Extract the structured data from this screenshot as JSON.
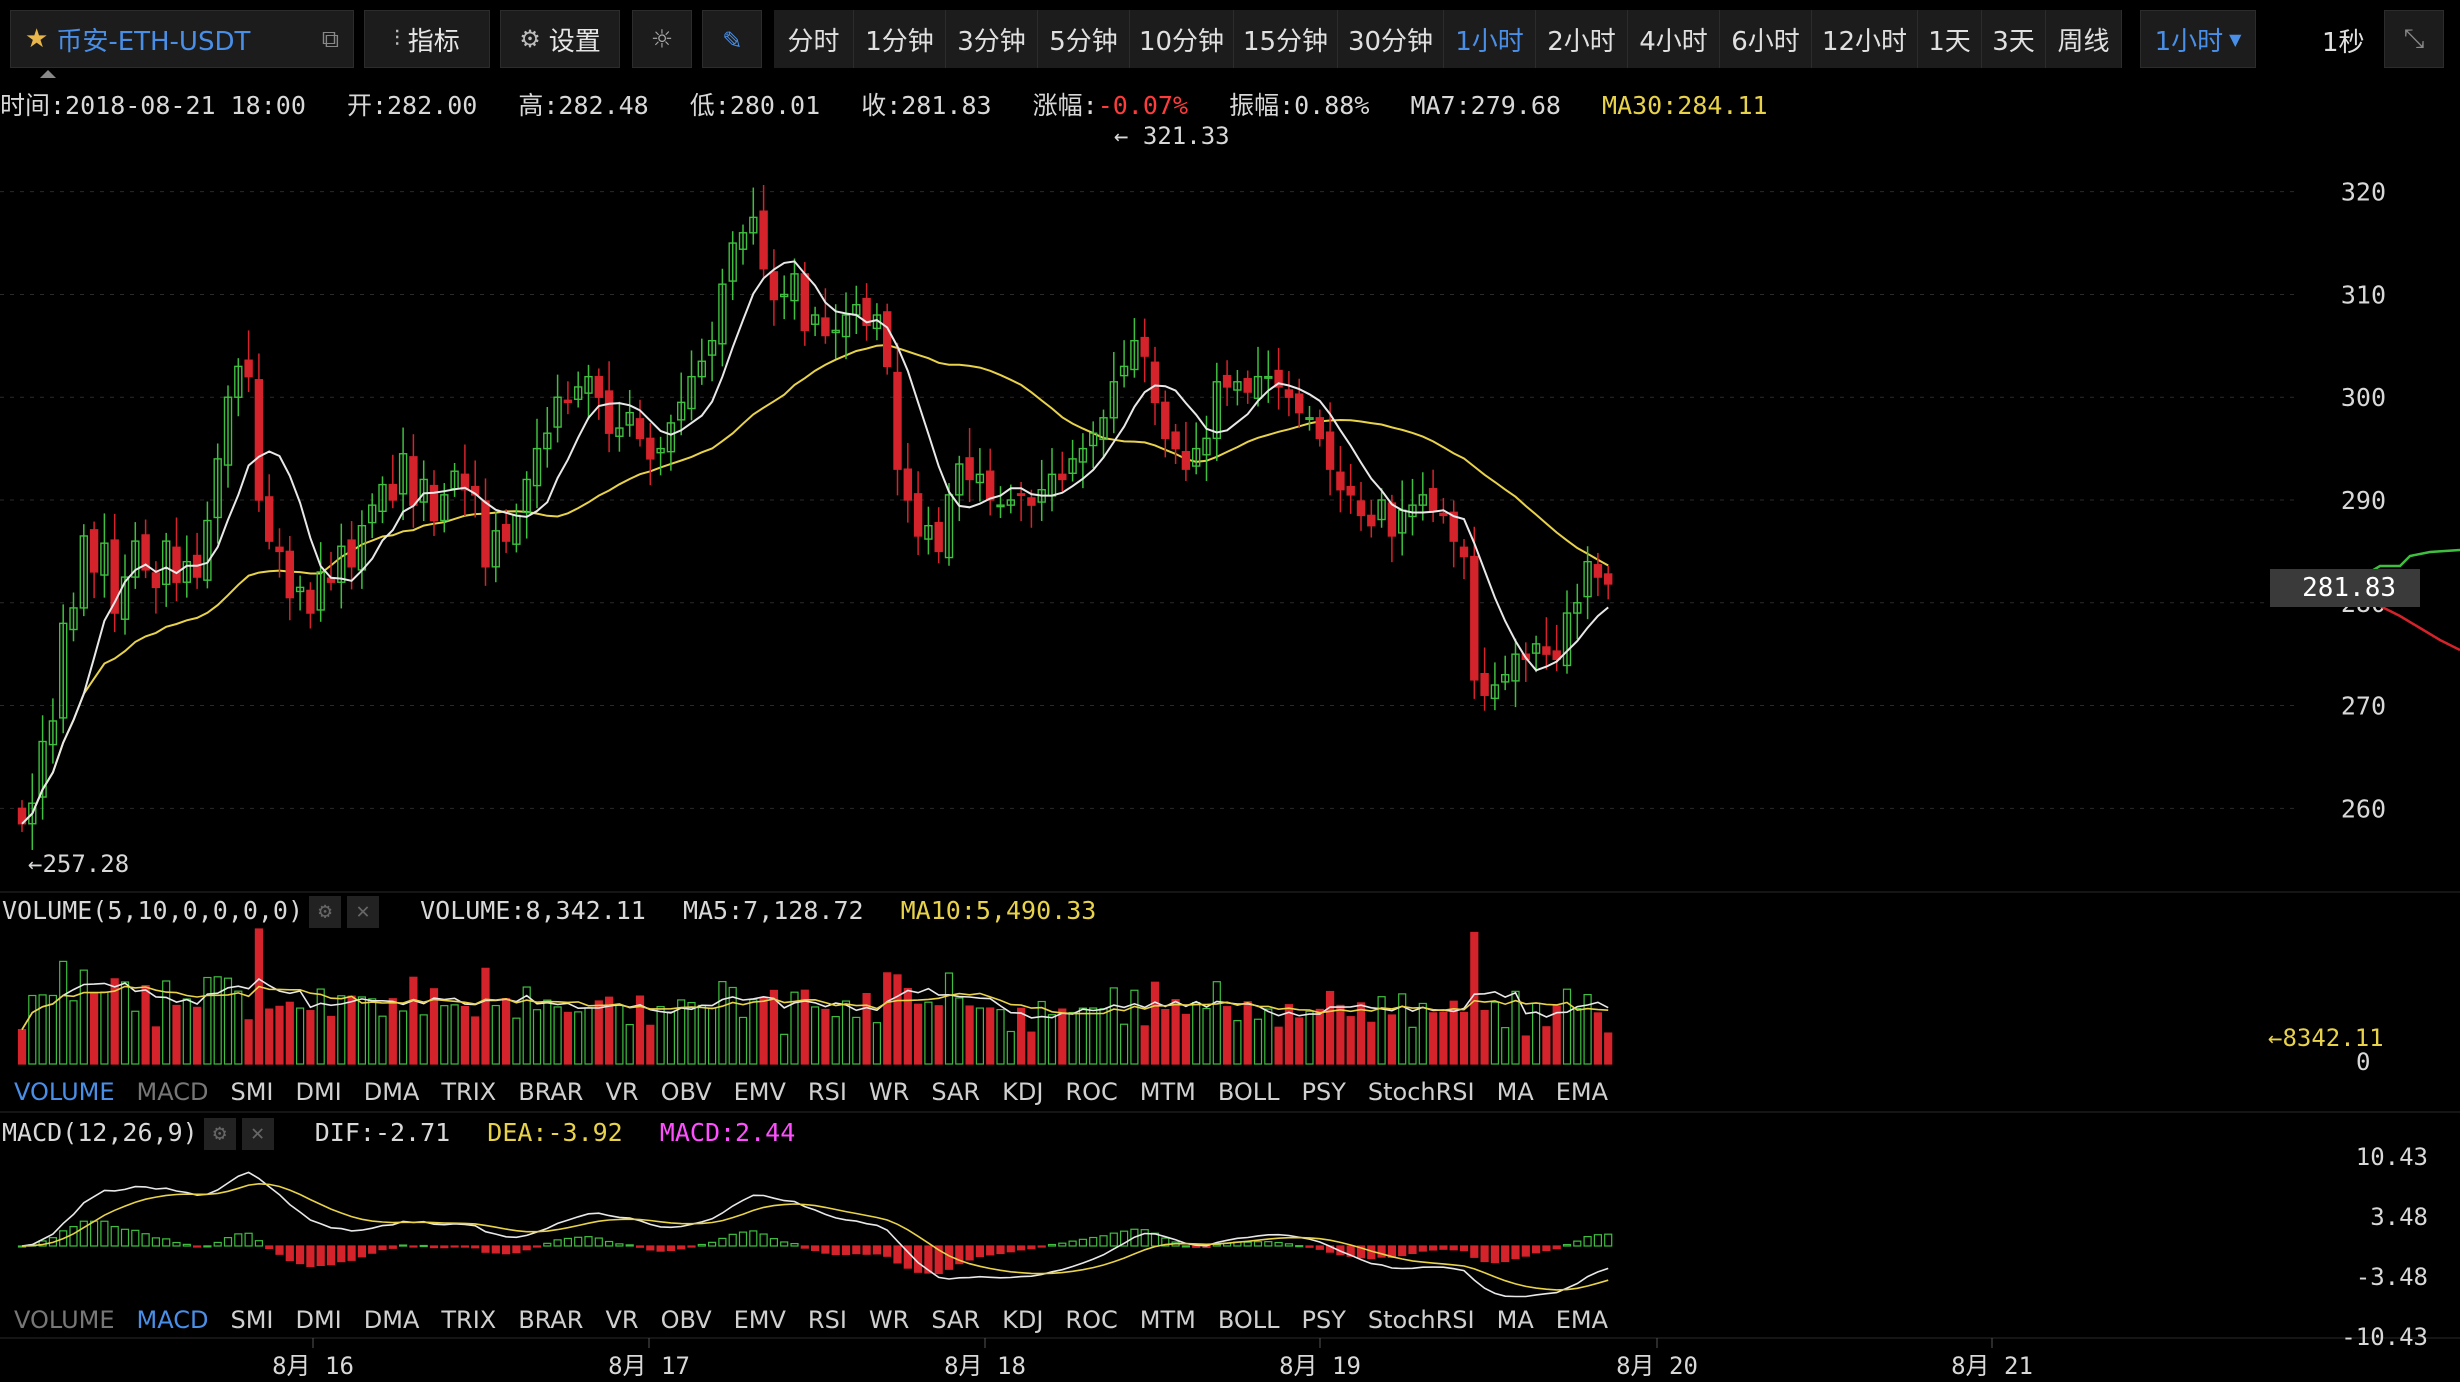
{
  "toolbar": {
    "symbol": "币安-ETH-USDT",
    "indicators_label": "指标",
    "settings_label": "设置",
    "timeframes": [
      "分时",
      "1分钟",
      "3分钟",
      "5分钟",
      "10分钟",
      "15分钟",
      "30分钟",
      "1小时",
      "2小时",
      "4小时",
      "6小时",
      "12小时",
      "1天",
      "3天",
      "周线"
    ],
    "active_timeframe": "1小时",
    "timeframe_select": "1小时",
    "refresh": "1秒"
  },
  "info": {
    "time": "时间:2018-08-21 18:00",
    "open": "开:282.00",
    "high": "高:282.48",
    "low": "低:280.01",
    "close": "收:281.83",
    "change_label": "涨幅:",
    "change_value": "-0.07%",
    "amplitude": "振幅:0.88%",
    "ma7": "MA7:279.68",
    "ma30": "MA30:284.11"
  },
  "price_pane": {
    "max_label": "← 321.33",
    "min_label": "←257.28",
    "last_price": "281.83",
    "axis_ticks": [
      "320",
      "310",
      "300",
      "290",
      "280",
      "270",
      "260"
    ]
  },
  "volume_pane": {
    "title": "VOLUME(5,10,0,0,0,0)",
    "volume": "VOLUME:8,342.11",
    "ma5": "MA5:7,128.72",
    "ma10": "MA10:5,490.33",
    "last_label": "←8342.11",
    "zero_label": "0"
  },
  "macd_pane": {
    "title": "MACD(12,26,9)",
    "dif": "DIF:-2.71",
    "dea": "DEA:-3.92",
    "macd": "MACD:2.44",
    "axis_ticks": [
      "10.43",
      "3.48",
      "-3.48",
      "-10.43"
    ]
  },
  "indicator_tabs": [
    "VOLUME",
    "MACD",
    "SMI",
    "DMI",
    "DMA",
    "TRIX",
    "BRAR",
    "VR",
    "OBV",
    "EMV",
    "RSI",
    "WR",
    "SAR",
    "KDJ",
    "ROC",
    "MTM",
    "BOLL",
    "PSY",
    "StochRSI",
    "MA",
    "EMA"
  ],
  "date_axis": [
    "8月 16",
    "8月 17",
    "8月 18",
    "8月 19",
    "8月 20",
    "8月 21"
  ],
  "colors": {
    "up": "#3fbf3f",
    "down": "#d4232b",
    "ma7": "#e8e8e8",
    "ma30": "#e8d24a",
    "accent": "#4a8fe7",
    "macd": "#ff4fff"
  },
  "chart_data": {
    "type": "candlestick",
    "symbol": "ETH-USDT",
    "interval": "1小时",
    "ylim": [
      254,
      326
    ],
    "high_marker": 321.33,
    "low_marker": 257.28,
    "close": [
      258.5,
      260.5,
      266.5,
      268.5,
      278,
      279.5,
      286.5,
      283,
      285.8,
      279,
      282.5,
      286,
      283.2,
      281.5,
      286,
      282,
      284,
      282.5,
      288,
      294,
      300,
      303,
      302,
      290,
      286,
      285,
      280.5,
      281.5,
      279,
      283,
      282,
      285.5,
      283.5,
      287.5,
      289.5,
      291.5,
      290,
      294.5,
      289.5,
      292,
      288,
      290.5,
      292.8,
      291,
      290.5,
      283.5,
      287,
      286,
      288.5,
      292,
      295,
      296.5,
      300,
      299.5,
      301,
      302,
      300,
      296.5,
      297,
      298.5,
      296,
      294,
      295,
      297.5,
      299.5,
      302,
      303.5,
      305.5,
      311,
      315,
      316,
      317.5,
      312.5,
      309.5,
      310,
      312,
      306.5,
      308,
      306,
      306.5,
      308,
      309,
      307,
      308,
      303,
      293,
      290,
      286.5,
      287.5,
      285,
      290.5,
      293.5,
      292,
      292.5,
      290,
      289.5,
      290,
      290.5,
      289.5,
      291,
      292.5,
      292,
      294,
      295,
      296.5,
      298,
      301.5,
      303,
      305.5,
      304,
      299.5,
      296,
      295,
      293,
      295,
      296,
      301.5,
      301,
      301.5,
      300.5,
      302,
      302,
      301,
      300,
      298.5,
      298,
      296,
      293,
      291,
      290.5,
      288.5,
      287.5,
      290,
      286.5,
      289,
      289.5,
      290.5,
      289,
      288.5,
      286,
      284.5,
      272.5,
      271,
      272,
      273,
      275,
      274.5,
      276,
      275,
      274.5,
      279,
      280,
      284,
      282.5,
      281.83
    ],
    "ma7_series_points": 145,
    "ma30_series_points": 145,
    "volume_last": 8342.11,
    "volume_ma5": 7128.72,
    "volume_ma10": 5490.33,
    "macd_dif": -2.71,
    "macd_dea": -3.92,
    "macd_hist": 2.44,
    "macd_ylim": [
      -10.43,
      10.43
    ],
    "x_labels": [
      "8月 16",
      "8月 17",
      "8月 18",
      "8月 19",
      "8月 20",
      "8月 21"
    ]
  }
}
